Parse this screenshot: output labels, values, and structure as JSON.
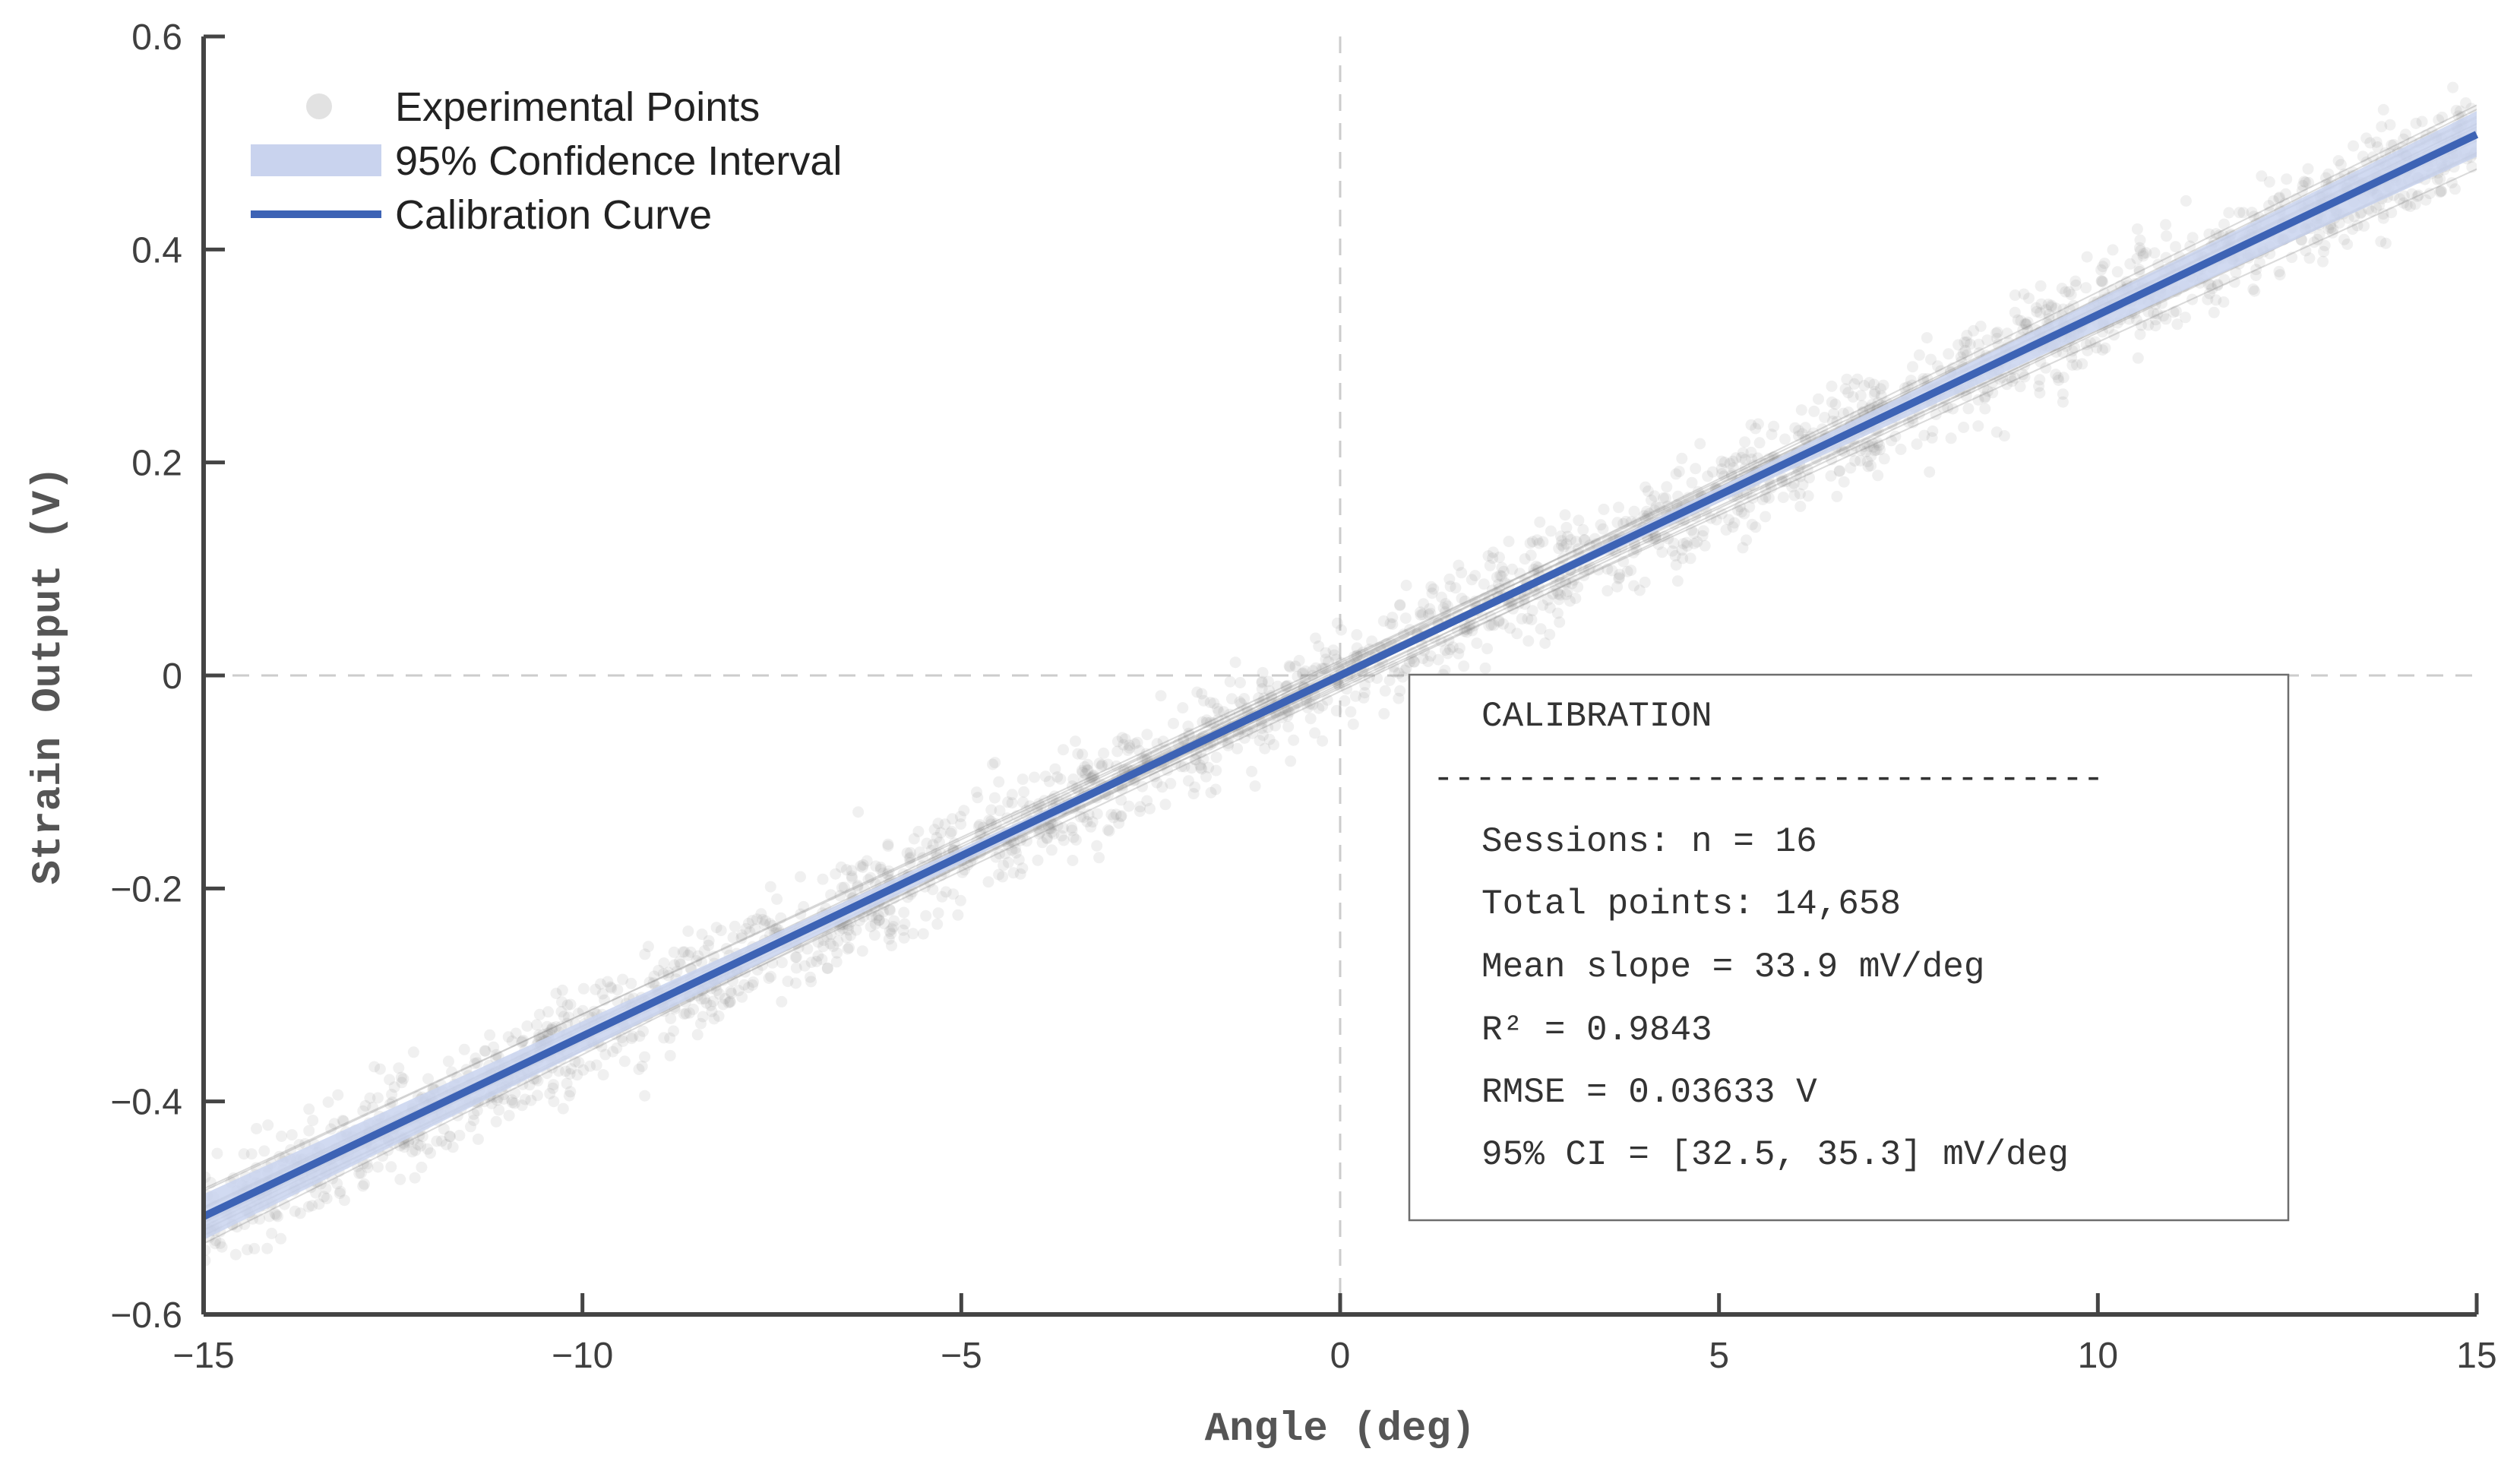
{
  "chart_data": {
    "type": "scatter",
    "xlabel": "Angle (deg)",
    "ylabel": "Strain Output (V)",
    "xlim": [
      -15,
      15
    ],
    "ylim": [
      -0.6,
      0.6
    ],
    "x_ticks": [
      -15,
      -10,
      -5,
      0,
      5,
      10,
      15
    ],
    "x_tick_labels": [
      "−15",
      "−10",
      "−5",
      "0",
      "5",
      "10",
      "15"
    ],
    "y_ticks": [
      -0.6,
      -0.4,
      -0.2,
      0,
      0.2,
      0.4,
      0.6
    ],
    "y_tick_labels": [
      "−0.6",
      "−0.4",
      "−0.2",
      "0",
      "0.2",
      "0.4",
      "0.6"
    ],
    "grid": false,
    "reference_lines": {
      "x": 0,
      "y": 0,
      "style": "dashed"
    },
    "legend_position": "top-left",
    "legend": [
      {
        "key": "points",
        "label": "Experimental Points"
      },
      {
        "key": "ci",
        "label": "95% Confidence Interval"
      },
      {
        "key": "curve",
        "label": "Calibration Curve"
      }
    ],
    "colors": {
      "points": "#808080",
      "curve": "#3d63b5",
      "ci_band": "#c9d3ee",
      "session_lines": "#bbbbbb",
      "axes": "#444444",
      "reference": "#cccccc"
    },
    "series": [
      {
        "name": "Calibration Curve",
        "type": "line",
        "x": [
          -15,
          15
        ],
        "y": [
          -0.508,
          0.508
        ]
      },
      {
        "name": "95% Confidence Interval",
        "type": "band",
        "x": [
          -15,
          0,
          15
        ],
        "lower": [
          -0.53,
          0.0,
          0.487
        ],
        "upper": [
          -0.487,
          0.0,
          0.53
        ]
      },
      {
        "name": "Experimental Points",
        "type": "scatter",
        "n": 14658,
        "model": {
          "slope": 0.0339,
          "rmse": 0.03633
        }
      }
    ],
    "session_fits": {
      "count": 16,
      "slopes": [
        0.0325,
        0.0328,
        0.033,
        0.0332,
        0.0334,
        0.0336,
        0.0337,
        0.0338,
        0.034,
        0.0341,
        0.0342,
        0.0344,
        0.0346,
        0.0348,
        0.0351,
        0.0355
      ],
      "intercepts": [
        -0.012,
        0.01,
        -0.006,
        0.014,
        -0.01,
        0.004,
        -0.015,
        0.008,
        -0.003,
        0.012,
        -0.008,
        0.002,
        0.006,
        -0.004,
        0.009,
        -0.001
      ]
    },
    "annotation": {
      "lines": [
        "CALIBRATION",
        "--------------------------------",
        "Sessions: n = 16",
        "Total points: 14,658",
        "Mean slope = 33.9 mV/deg",
        "R² = 0.9843",
        "RMSE = 0.03633 V",
        "95% CI = [32.5, 35.3] mV/deg"
      ]
    }
  }
}
